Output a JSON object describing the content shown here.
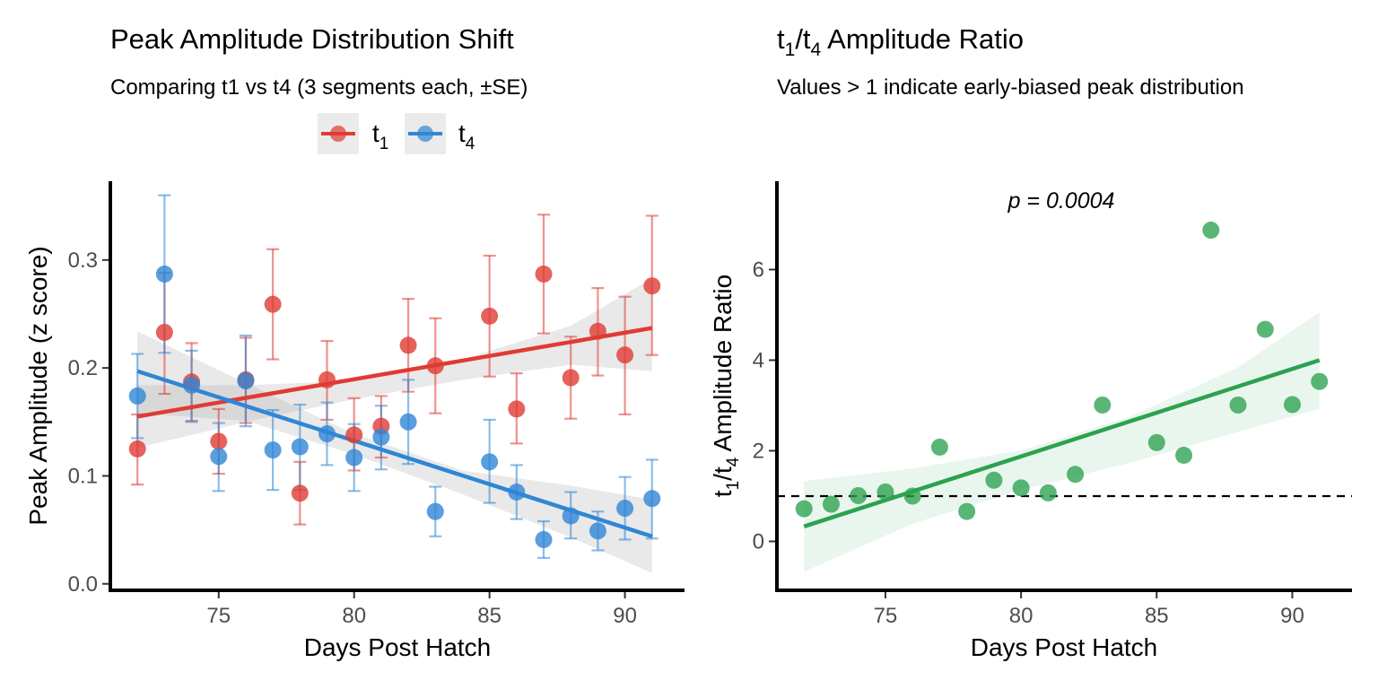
{
  "chart_data": [
    {
      "type": "scatter",
      "title": "Peak Amplitude Distribution Shift",
      "subtitle": "Comparing t1 vs t4 (3 segments each, ±SE)",
      "xlabel": "Days Post Hatch",
      "ylabel": "Peak Amplitude (z score)",
      "xlim": [
        71,
        92.2
      ],
      "ylim": [
        -0.006,
        0.373
      ],
      "xticks": [
        75,
        80,
        85,
        90
      ],
      "yticks": [
        0.0,
        0.1,
        0.2,
        0.3
      ],
      "ytick_labels": [
        "0.0",
        "0.1",
        "0.2",
        "0.3"
      ],
      "legend_position": "top",
      "grid": false,
      "series": [
        {
          "name": "t1",
          "legend_base": "t",
          "legend_sub": "1",
          "color": "#e03b33",
          "points": [
            {
              "x": 72,
              "y": 0.125,
              "lo": 0.092,
              "hi": 0.157
            },
            {
              "x": 73,
              "y": 0.233,
              "lo": 0.176,
              "hi": 0.288
            },
            {
              "x": 74,
              "y": 0.187,
              "lo": 0.151,
              "hi": 0.223
            },
            {
              "x": 75,
              "y": 0.132,
              "lo": 0.102,
              "hi": 0.162
            },
            {
              "x": 76,
              "y": 0.189,
              "lo": 0.149,
              "hi": 0.228
            },
            {
              "x": 77,
              "y": 0.259,
              "lo": 0.208,
              "hi": 0.31
            },
            {
              "x": 78,
              "y": 0.084,
              "lo": 0.055,
              "hi": 0.113
            },
            {
              "x": 79,
              "y": 0.189,
              "lo": 0.152,
              "hi": 0.225
            },
            {
              "x": 80,
              "y": 0.138,
              "lo": 0.105,
              "hi": 0.172
            },
            {
              "x": 81,
              "y": 0.146,
              "lo": 0.117,
              "hi": 0.174
            },
            {
              "x": 82,
              "y": 0.221,
              "lo": 0.178,
              "hi": 0.264
            },
            {
              "x": 83,
              "y": 0.202,
              "lo": 0.158,
              "hi": 0.246
            },
            {
              "x": 85,
              "y": 0.248,
              "lo": 0.192,
              "hi": 0.304
            },
            {
              "x": 86,
              "y": 0.162,
              "lo": 0.13,
              "hi": 0.195
            },
            {
              "x": 87,
              "y": 0.287,
              "lo": 0.232,
              "hi": 0.342
            },
            {
              "x": 88,
              "y": 0.191,
              "lo": 0.153,
              "hi": 0.229
            },
            {
              "x": 89,
              "y": 0.234,
              "lo": 0.193,
              "hi": 0.274
            },
            {
              "x": 90,
              "y": 0.212,
              "lo": 0.157,
              "hi": 0.266
            },
            {
              "x": 91,
              "y": 0.276,
              "lo": 0.212,
              "hi": 0.341
            }
          ],
          "fit": {
            "x0": 72,
            "y0": 0.155,
            "x1": 91,
            "y1": 0.237
          },
          "band": {
            "x": [
              72,
              76,
              80,
              84,
              88,
              91
            ],
            "lo": [
              0.126,
              0.15,
              0.171,
              0.189,
              0.203,
              0.197
            ],
            "hi": [
              0.184,
              0.184,
              0.188,
              0.208,
              0.239,
              0.283
            ]
          }
        },
        {
          "name": "t4",
          "legend_base": "t",
          "legend_sub": "4",
          "color": "#2f86d6",
          "points": [
            {
              "x": 72,
              "y": 0.174,
              "lo": 0.135,
              "hi": 0.213
            },
            {
              "x": 73,
              "y": 0.287,
              "lo": 0.214,
              "hi": 0.36
            },
            {
              "x": 74,
              "y": 0.184,
              "lo": 0.15,
              "hi": 0.216
            },
            {
              "x": 75,
              "y": 0.118,
              "lo": 0.086,
              "hi": 0.149
            },
            {
              "x": 76,
              "y": 0.188,
              "lo": 0.146,
              "hi": 0.23
            },
            {
              "x": 77,
              "y": 0.124,
              "lo": 0.087,
              "hi": 0.161
            },
            {
              "x": 78,
              "y": 0.127,
              "lo": 0.087,
              "hi": 0.166
            },
            {
              "x": 79,
              "y": 0.139,
              "lo": 0.11,
              "hi": 0.168
            },
            {
              "x": 80,
              "y": 0.117,
              "lo": 0.086,
              "hi": 0.148
            },
            {
              "x": 81,
              "y": 0.136,
              "lo": 0.106,
              "hi": 0.165
            },
            {
              "x": 82,
              "y": 0.15,
              "lo": 0.111,
              "hi": 0.189
            },
            {
              "x": 83,
              "y": 0.067,
              "lo": 0.044,
              "hi": 0.09
            },
            {
              "x": 85,
              "y": 0.113,
              "lo": 0.075,
              "hi": 0.152
            },
            {
              "x": 86,
              "y": 0.085,
              "lo": 0.06,
              "hi": 0.11
            },
            {
              "x": 87,
              "y": 0.041,
              "lo": 0.024,
              "hi": 0.058
            },
            {
              "x": 88,
              "y": 0.063,
              "lo": 0.042,
              "hi": 0.085
            },
            {
              "x": 89,
              "y": 0.049,
              "lo": 0.031,
              "hi": 0.067
            },
            {
              "x": 90,
              "y": 0.07,
              "lo": 0.041,
              "hi": 0.099
            },
            {
              "x": 91,
              "y": 0.079,
              "lo": 0.042,
              "hi": 0.115
            }
          ],
          "fit": {
            "x0": 72,
            "y0": 0.197,
            "x1": 91,
            "y1": 0.044
          },
          "band": {
            "x": [
              72,
              76,
              80,
              84,
              88,
              91
            ],
            "lo": [
              0.158,
              0.151,
              0.12,
              0.083,
              0.043,
              0.01
            ],
            "hi": [
              0.234,
              0.186,
              0.139,
              0.105,
              0.091,
              0.078
            ]
          }
        }
      ]
    },
    {
      "type": "scatter",
      "title_base": "t",
      "title_sub1": "1",
      "title_mid": "/t",
      "title_sub2": "4",
      "title_rest": " Amplitude Ratio",
      "subtitle": "Values > 1 indicate early-biased peak distribution",
      "xlabel": "Days Post Hatch",
      "ylabel_base": "t",
      "ylabel_sub1": "1",
      "ylabel_mid": "/t",
      "ylabel_sub2": "4",
      "ylabel_rest": " Amplitude Ratio",
      "annotation": "p = 0.0004",
      "xlim": [
        71,
        92.2
      ],
      "ylim": [
        -1.08,
        7.95
      ],
      "xticks": [
        75,
        80,
        85,
        90
      ],
      "yticks": [
        0,
        2,
        4,
        6
      ],
      "ytick_labels": [
        "0",
        "2",
        "4",
        "6"
      ],
      "reference_line": {
        "y": 1,
        "style": "dashed"
      },
      "grid": false,
      "color": "#2ca24f",
      "points": [
        {
          "x": 72,
          "y": 0.72
        },
        {
          "x": 73,
          "y": 0.82
        },
        {
          "x": 74,
          "y": 1.01
        },
        {
          "x": 75,
          "y": 1.09
        },
        {
          "x": 76,
          "y": 1.0
        },
        {
          "x": 77,
          "y": 2.08
        },
        {
          "x": 78,
          "y": 0.66
        },
        {
          "x": 79,
          "y": 1.35
        },
        {
          "x": 80,
          "y": 1.18
        },
        {
          "x": 81,
          "y": 1.07
        },
        {
          "x": 82,
          "y": 1.48
        },
        {
          "x": 83,
          "y": 3.01
        },
        {
          "x": 85,
          "y": 2.18
        },
        {
          "x": 86,
          "y": 1.9
        },
        {
          "x": 87,
          "y": 6.87
        },
        {
          "x": 88,
          "y": 3.01
        },
        {
          "x": 89,
          "y": 4.68
        },
        {
          "x": 90,
          "y": 3.02
        },
        {
          "x": 91,
          "y": 3.53
        }
      ],
      "fit": {
        "x0": 72,
        "y0": 0.33,
        "x1": 91,
        "y1": 4.0
      },
      "band": {
        "x": [
          72,
          76,
          80,
          84,
          88,
          91
        ],
        "lo": [
          -0.67,
          0.39,
          1.14,
          1.73,
          2.42,
          2.93
        ],
        "hi": [
          1.33,
          1.61,
          2.01,
          2.75,
          3.84,
          5.06
        ]
      }
    }
  ]
}
